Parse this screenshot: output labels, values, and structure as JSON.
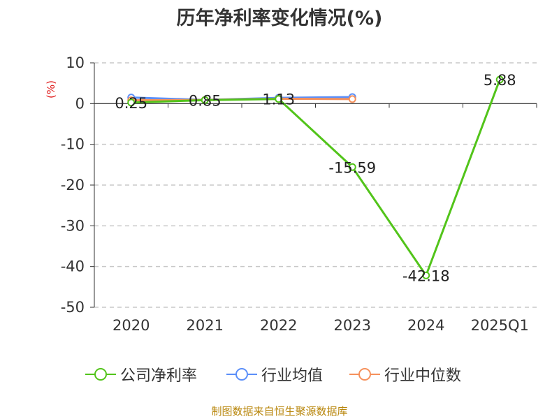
{
  "title": "历年净利率变化情况(%)",
  "source": "制图数据来自恒生聚源数据库",
  "colors": {
    "company": "#52c41a",
    "industry_avg": "#5b8ff9",
    "industry_median": "#f6915c",
    "ylabel": "#e02020",
    "source": "#b8860b"
  },
  "chart_data": {
    "type": "line",
    "title": "历年净利率变化情况(%)",
    "ylabel": "(%)",
    "xlabel": "",
    "categories": [
      "2020",
      "2021",
      "2022",
      "2023",
      "2024",
      "2025Q1"
    ],
    "ylim": [
      -50,
      10
    ],
    "yticks": [
      10,
      0,
      -10,
      -20,
      -30,
      -40,
      -50
    ],
    "grid": true,
    "legend": "bottom",
    "series": [
      {
        "name": "公司净利率",
        "key": "company",
        "values": [
          0.25,
          0.85,
          1.13,
          -15.59,
          -42.18,
          5.88
        ],
        "labels": [
          "0.25",
          "0.85",
          "1.13",
          "-15.59",
          "-42.18",
          "5.88"
        ]
      },
      {
        "name": "行业均值",
        "key": "industry_avg",
        "values": [
          1.5,
          0.9,
          1.4,
          1.6,
          null,
          null
        ]
      },
      {
        "name": "行业中位数",
        "key": "industry_median",
        "values": [
          0.8,
          0.9,
          1.2,
          1.1,
          null,
          null
        ]
      }
    ]
  }
}
